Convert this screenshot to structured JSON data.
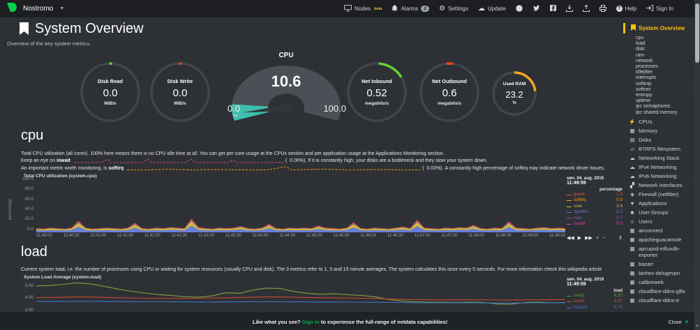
{
  "header": {
    "hostname": "Nostromo",
    "nodes": "Nodes",
    "nodes_beta": "beta",
    "alarms": "Alarms",
    "alarms_badge": "2",
    "settings": "Settings",
    "update": "Update",
    "help": "Help",
    "signin": "Sign In"
  },
  "page": {
    "title": "System Overview",
    "subtitle": "Overview of the key system metrics."
  },
  "gauges": {
    "disk_read": {
      "title": "Disk Read",
      "value": "0.0",
      "unit": "MiB/s",
      "arc_color": "#69CF30"
    },
    "disk_write": {
      "title": "Disk Write",
      "value": "0.0",
      "unit": "MiB/s",
      "arc_color": "#FF4019"
    },
    "cpu": {
      "title": "CPU",
      "value": "10.6",
      "min": "0.0",
      "max": "100.0",
      "unit": "%",
      "fill_color": "#3FBFAE"
    },
    "net_inbound": {
      "title": "Net Inbound",
      "value": "0.52",
      "unit": "megabits/s",
      "arc_color": "#69CF30"
    },
    "net_outbound": {
      "title": "Net Outbound",
      "value": "0.6",
      "unit": "megabits/s",
      "arc_color": "#FF4019"
    },
    "used_ram": {
      "title": "Used RAM",
      "value": "23.2",
      "unit": "%",
      "arc_color": "#F5A623"
    }
  },
  "cpu_section": {
    "heading": "cpu",
    "para": "Total CPU utilization (all cores). 100% here means there is no CPU idle time at all. You can get per core usage at the CPUs section and per application usage at the Applications Monitoring section.",
    "iowait_pre": "Keep an eye on",
    "iowait_bold": "iowait",
    "iowait_val": "(  0.00%).",
    "iowait_post": "If it is constantly high, your disks are a bottleneck and they slow your system down.",
    "softirq_pre": "An important metric worth monitoring, is",
    "softirq_bold": "softirq",
    "softirq_val": "(  0.03%).",
    "softirq_post": "A constantly high percentage of softirq may indicate network driver issues."
  },
  "load_section": {
    "heading": "load",
    "para": "Current system load, i.e. the number of processes using CPU or waiting for system resources (usually CPU and disk). The 3 metrics refer to 1, 5 and 15 minute averages. The system calculates this once every 5 seconds. For more information check this wikipedia article"
  },
  "chart_data": [
    {
      "type": "area",
      "title": "Total CPU utilization (system.cpu)",
      "date": "søn. 04. aug. 2019",
      "time": "11:49:59",
      "unit_header": "percentage",
      "ylabel": "percentage",
      "ylim": [
        0,
        100
      ],
      "yticks": [
        "100.0",
        "80.0",
        "60.0",
        "40.0",
        "20.0",
        "0.0"
      ],
      "xticks": [
        "11:40:00",
        "11:40:30",
        "11:41:00",
        "11:41:30",
        "11:42:00",
        "11:42:30",
        "11:43:00",
        "11:43:30",
        "11:44:00",
        "11:44:30",
        "11:45:00",
        "11:45:30",
        "11:46:00",
        "11:46:30",
        "11:47:00",
        "11:47:30",
        "11:48:00",
        "11:48:30",
        "11:49:00",
        "11:49:30"
      ],
      "legend": [
        {
          "name": "guest",
          "value": "1.2",
          "color": "#DE5448"
        },
        {
          "name": "softirq",
          "value": "0.0",
          "color": "#FF9900"
        },
        {
          "name": "user",
          "value": "3.4",
          "color": "#CCBF3D"
        },
        {
          "name": "system",
          "value": "5.2",
          "color": "#6B7ED9"
        },
        {
          "name": "nice",
          "value": "0.7",
          "color": "#9159C1"
        },
        {
          "name": "iowait",
          "value": "0.0",
          "color": "#D8459B"
        }
      ],
      "stack_order": [
        "system",
        "user",
        "nice",
        "guest"
      ],
      "fractions": {
        "system": 0.49,
        "user": 0.32,
        "nice": 0.07,
        "guest": 0.12
      },
      "totals": [
        8,
        7,
        9,
        8,
        7,
        9,
        22,
        9,
        7,
        8,
        9,
        8,
        7,
        9,
        18,
        8,
        7,
        9,
        8,
        10,
        9,
        8,
        26,
        10,
        8,
        7,
        9,
        8,
        9,
        12,
        8,
        7,
        9,
        16,
        8,
        7,
        9,
        8,
        9,
        8,
        13,
        9,
        8,
        7,
        9,
        19,
        8,
        7,
        9,
        8,
        7,
        9,
        11,
        8,
        24,
        9,
        8,
        7,
        9,
        8,
        10,
        9,
        14,
        8,
        7,
        9,
        8,
        21,
        9,
        8,
        7,
        9,
        10,
        8,
        9,
        8
      ]
    },
    {
      "type": "line",
      "title": "System Load Average (system.load)",
      "date": "søn. 04. aug. 2019",
      "time": "11:49:59",
      "unit_header": "load",
      "ylim": [
        2.8,
        5.6
      ],
      "yticks": [
        "5.00",
        "4.00",
        "3.00"
      ],
      "legend": [
        {
          "name": "load1",
          "value": "4.25",
          "color": "#57A639"
        },
        {
          "name": "load5",
          "value": "4.07",
          "color": "#CC4B37"
        },
        {
          "name": "load15",
          "value": "3.74",
          "color": "#4473C5"
        }
      ],
      "series": [
        {
          "name": "load1",
          "color": "#7FA33C",
          "values": [
            5.05,
            5.08,
            5.18,
            5.3,
            5.22,
            5.02,
            4.8,
            4.62,
            4.48,
            4.35,
            4.28,
            4.18,
            4.15,
            4.26,
            4.5,
            4.46,
            4.72,
            4.88,
            4.84,
            4.6,
            4.46,
            4.38,
            4.42,
            4.34,
            4.28,
            4.18,
            3.96,
            3.84,
            3.78,
            3.75,
            3.74,
            3.73,
            3.76,
            3.72,
            3.6,
            3.58,
            3.72,
            3.76,
            3.7,
            3.72
          ]
        },
        {
          "name": "load5",
          "color": "#C74634",
          "values": [
            4.12,
            4.12,
            4.14,
            4.18,
            4.16,
            4.13,
            4.1,
            4.08,
            4.06,
            4.05,
            4.06,
            4.05,
            4.06,
            4.08,
            4.1,
            4.12,
            4.15,
            4.18,
            4.16,
            4.14,
            4.12,
            4.1,
            4.1,
            4.08,
            4.06,
            4.05,
            4.0,
            3.97,
            3.95,
            3.94,
            3.93,
            3.93,
            3.94,
            3.93,
            3.92,
            3.91,
            3.93,
            3.95,
            3.94,
            3.95
          ]
        },
        {
          "name": "load15",
          "color": "#4473C5",
          "values": [
            3.8,
            3.8,
            3.8,
            3.81,
            3.81,
            3.8,
            3.79,
            3.79,
            3.78,
            3.78,
            3.77,
            3.77,
            3.76,
            3.76,
            3.77,
            3.77,
            3.78,
            3.78,
            3.78,
            3.77,
            3.77,
            3.76,
            3.76,
            3.75,
            3.75,
            3.74,
            3.73,
            3.72,
            3.71,
            3.7,
            3.7,
            3.7,
            3.7,
            3.69,
            3.68,
            3.68,
            3.69,
            3.7,
            3.69,
            3.7
          ]
        }
      ]
    }
  ],
  "toolbar": {
    "icons": [
      "◀◀",
      "▶",
      "▶▶",
      "+",
      "−",
      "⇕"
    ]
  },
  "sidebar": {
    "active": "System Overview",
    "sub_items": [
      "cpu",
      "load",
      "disk",
      "ram",
      "network",
      "processes",
      "idlejitter",
      "interrupts",
      "softirqs",
      "softnet",
      "entropy",
      "uptime",
      "ipc semaphores",
      "ipc shared memory"
    ],
    "menu_items": [
      {
        "icon": "bolt",
        "label": "CPUs"
      },
      {
        "icon": "memory",
        "label": "Memory"
      },
      {
        "icon": "disks",
        "label": "Disks"
      },
      {
        "icon": "folder",
        "label": "BTRFS filesystem"
      },
      {
        "icon": "cloud",
        "label": "Networking Stack"
      },
      {
        "icon": "cloud",
        "label": "IPv4 Networking"
      },
      {
        "icon": "cloud",
        "label": "IPv6 Networking"
      },
      {
        "icon": "sitemap",
        "label": "Network Interfaces"
      },
      {
        "icon": "shield",
        "label": "Firewall (netfilter)"
      },
      {
        "icon": "heartbeat",
        "label": "Applications"
      },
      {
        "icon": "users",
        "label": "User Groups"
      },
      {
        "icon": "user",
        "label": "Users"
      }
    ],
    "app_items": [
      {
        "icon": "grid",
        "label": "airconnect"
      },
      {
        "icon": "grid",
        "label": "apacheguacamole"
      },
      {
        "icon": "grid",
        "label": "apcupsd-influxdb-exporter"
      },
      {
        "icon": "grid",
        "label": "bazarr"
      },
      {
        "icon": "grid",
        "label": "binhex-delugevpn"
      },
      {
        "icon": "grid",
        "label": "calibreweb"
      },
      {
        "icon": "grid",
        "label": "cloudflare-ddns-gllix"
      },
      {
        "icon": "grid",
        "label": "cloudflare-ddns-tr"
      }
    ]
  },
  "footer": {
    "pre": "Like what you see?",
    "signin": "Sign in",
    "post": "to experience the full-range of netdata capabilities!",
    "close": "Close"
  }
}
